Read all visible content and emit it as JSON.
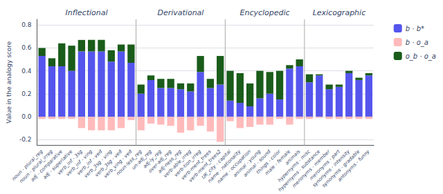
{
  "chart_data": {
    "type": "bar",
    "categories": [
      "noun - plural_reg",
      "noun - plural_irreg",
      "adj - comparative",
      "adj - superlative",
      "verb_inf - 3sg",
      "verb_inf - ving",
      "verb_inf - ved",
      "verb_3sg - ving",
      "verb_3sg - ved",
      "verb_ving - ved",
      "noun-less_reg",
      "un-adj_reg",
      "adj-ly_reg",
      "over-adj_reg",
      "adj-ness_reg",
      "verb-able_irreg",
      "verb-tion_irreg",
      "verb-ment_trees",
      "verb-ment_trees2",
      "UK_city - capital",
      "name - nationality",
      "name - occupation",
      "animal - young",
      "animal - sound",
      "things - color",
      "male - female",
      "animals",
      "hypernyms - misc",
      "hypernyms - substance",
      "meronyms - member",
      "meronyms - part",
      "synonyms - intensity",
      "synonyms - gradable",
      "antonyms - funny"
    ],
    "series": [
      {
        "name": "b · b*",
        "color": "#5555ee",
        "values": [
          0.53,
          0.44,
          0.44,
          0.4,
          0.57,
          0.57,
          0.57,
          0.48,
          0.57,
          0.47,
          0.2,
          0.32,
          0.25,
          0.25,
          0.24,
          0.22,
          0.39,
          0.25,
          0.28,
          0.14,
          0.12,
          0.09,
          0.16,
          0.2,
          0.15,
          0.42,
          0.44,
          0.3,
          0.36,
          0.24,
          0.26,
          0.38,
          0.32,
          0.36
        ]
      },
      {
        "name": "b · o_a",
        "color": "#ffbbbb",
        "values": [
          -0.02,
          -0.02,
          -0.02,
          -0.02,
          -0.1,
          -0.12,
          -0.12,
          -0.12,
          -0.1,
          -0.03,
          -0.12,
          -0.06,
          -0.07,
          -0.08,
          -0.14,
          -0.12,
          -0.08,
          -0.13,
          -0.22,
          -0.04,
          -0.1,
          -0.09,
          -0.07,
          -0.07,
          -0.02,
          -0.07,
          -0.02,
          -0.02,
          -0.01,
          -0.02,
          -0.02,
          -0.02,
          -0.02,
          -0.02
        ]
      },
      {
        "name": "o_b · o_a",
        "color": "#1a5c1a",
        "values": [
          0.07,
          0.07,
          0.2,
          0.22,
          0.1,
          0.1,
          0.1,
          0.1,
          0.06,
          0.16,
          0.08,
          0.04,
          0.08,
          0.08,
          0.05,
          0.07,
          0.14,
          0.08,
          0.25,
          0.26,
          0.26,
          0.2,
          0.24,
          0.19,
          0.25,
          0.03,
          0.06,
          0.07,
          0.01,
          0.04,
          0.02,
          0.02,
          0.02,
          0.02
        ]
      }
    ],
    "stacked": true,
    "ylabel": "Value in the analogy score",
    "ylim": [
      -0.25,
      0.85
    ],
    "yticks": [
      -0.2,
      {
        "value": 0,
        "label": "0.0"
      },
      0.2,
      0.4,
      0.6,
      0.8
    ],
    "grid": true,
    "legend": "right",
    "annotations": [
      {
        "text": "Inflectional",
        "from": "noun - plural_reg",
        "to": "verb_ving - ved"
      },
      {
        "text": "Derivational",
        "from": "noun-less_reg",
        "to": "verb-ment_trees2"
      },
      {
        "text": "Encyclopedic",
        "from": "UK_city - capital",
        "to": "animals"
      },
      {
        "text": "Lexicographic",
        "from": "hypernyms - misc",
        "to": "antonyms - funny"
      }
    ]
  }
}
